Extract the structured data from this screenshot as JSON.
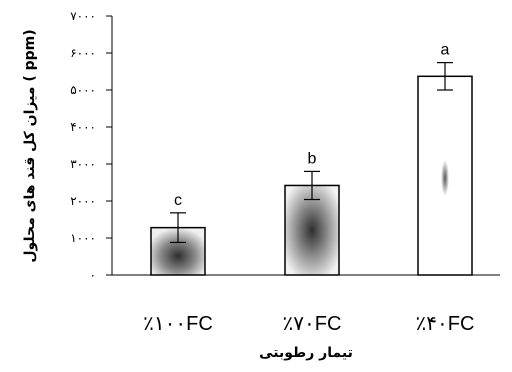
{
  "chart_data": {
    "type": "bar",
    "title": "",
    "xlabel": "تیمار رطوبتی",
    "ylabel": "میزان کل قند های محلول ( ppm)",
    "ylim": [
      0,
      7000
    ],
    "yticks": [
      0,
      1000,
      2000,
      3000,
      4000,
      5000,
      6000,
      7000
    ],
    "ytick_labels": [
      "۰",
      "۱۰۰۰",
      "۲۰۰۰",
      "۳۰۰۰",
      "۴۰۰۰",
      "۵۰۰۰",
      "۶۰۰۰",
      "۷۰۰۰"
    ],
    "categories": [
      "٪۱۰۰FC",
      "٪۷۰FC",
      "٪۴۰FC"
    ],
    "values": [
      1280,
      2420,
      5370
    ],
    "errors": [
      400,
      380,
      370
    ],
    "letters": [
      "c",
      "b",
      "a"
    ],
    "grid": false,
    "legend": "none",
    "colors": {
      "bar_fill_1": "#3a3a3a",
      "bar_fill_2": "#3a3a3a",
      "bar_fill_3": "#ffffff",
      "bar_center_mark": "#555555",
      "axis": "#000000"
    }
  }
}
